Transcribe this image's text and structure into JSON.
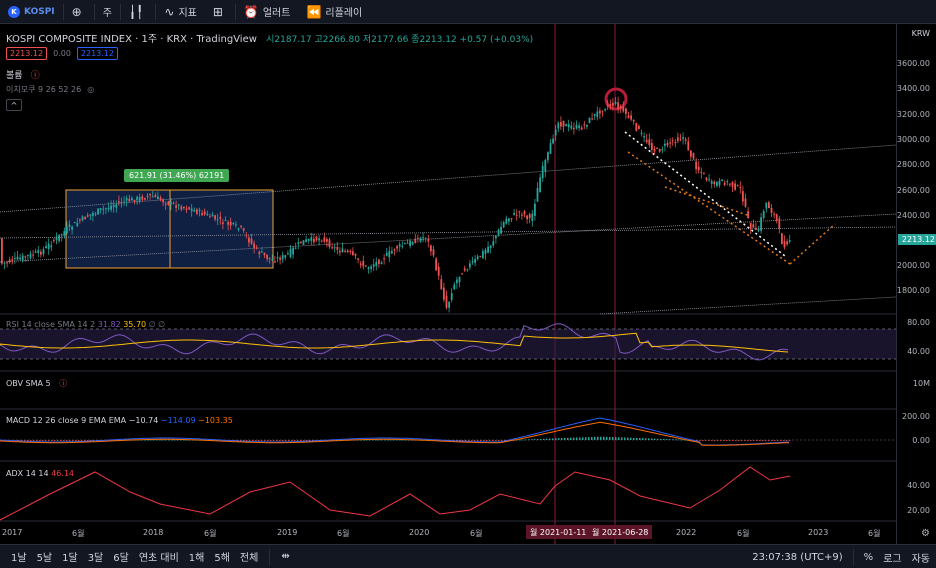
{
  "toolbar": {
    "symbol": "KOSPI",
    "interval": "주",
    "indicators": "지표",
    "alerts": "얼러트",
    "replay": "리플레이"
  },
  "legend": {
    "title": "KOSPI COMPOSITE INDEX · 1주 · KRX · TradingView",
    "ohlc": "시2187.17 고2266.80 저2177.66 종2213.12 +0.57 (+0.03%)",
    "sell": "2213.12",
    "spread": "0.00",
    "buy": "2213.12",
    "volume": "볼륨",
    "ichimoku": "이치모쿠 9 26 52 26",
    "collapse": "^"
  },
  "measure_label": "621.91 (31.46%) 62191",
  "price_axis": {
    "currency": "KRW",
    "ticks": [
      "3600.00",
      "3400.00",
      "3200.00",
      "3000.00",
      "2800.00",
      "2600.00",
      "2400.00",
      "2200.00",
      "2000.00",
      "1800.00"
    ],
    "last_price": "2213.12"
  },
  "rsi": {
    "label": "RSI 14 close SMA 14 2",
    "v1": "31.82",
    "v2": "35.70",
    "v3": "∅ ∅",
    "ticks": [
      "80.00",
      "40.00"
    ]
  },
  "obv": {
    "label": "OBV SMA 5",
    "tick": "10M"
  },
  "macd": {
    "label": "MACD 12 26 close 9 EMA EMA",
    "v1": "−10.74",
    "v2": "−114.09",
    "v3": "−103.35",
    "ticks": [
      "200.00",
      "0.00"
    ]
  },
  "adx": {
    "label": "ADX 14 14",
    "v1": "46.14",
    "ticks": [
      "40.00",
      "20.00"
    ]
  },
  "time_axis": {
    "labels": [
      "2017",
      "6월",
      "2018",
      "6월",
      "2019",
      "6월",
      "2020",
      "6월",
      "2022",
      "6월",
      "2023",
      "6월"
    ],
    "tag1": "월 2021-01-11",
    "tag2": "월 2021-06-28"
  },
  "bottom": {
    "ranges": [
      "1날",
      "5날",
      "1달",
      "3달",
      "6달",
      "연초 대비",
      "1해",
      "5해",
      "전체"
    ],
    "clock": "23:07:38 (UTC+9)",
    "percent": "%",
    "log": "로그",
    "auto": "자동"
  },
  "colors": {
    "up": "#26a69a",
    "down": "#ef5350",
    "rsi": "#7e57c2",
    "signal": "#ffc107",
    "macd": "#2962ff",
    "adx": "#f23645"
  }
}
